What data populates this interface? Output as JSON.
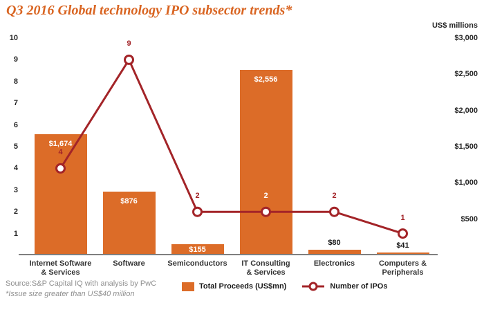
{
  "title": "Q3 2016 Global technology IPO subsector trends*",
  "source_line": "Source:S&P Capital IQ with analysis by PwC",
  "footnote_line": "*Issue size greater than US$40 million",
  "legend": {
    "bar_label": "Total Proceeds (US$mn)",
    "line_label": "Number of IPOs"
  },
  "colors": {
    "title": "#D96522",
    "bar": "#DC6C28",
    "line": "#A32428",
    "axis_line": "#7F7F7F",
    "tick_text": "#262626",
    "muted_text": "#8F8F8F",
    "bar_label_inside": "#FFFFFF",
    "bar_label_above": "#1A1A1A"
  },
  "chart_data": {
    "type": "bar+line (dual-axis combo)",
    "title": "Q3 2016 Global technology IPO subsector trends*",
    "categories": [
      "Internet Software\n& Services",
      "Software",
      "Semiconductors",
      "IT Consulting\n& Services",
      "Electronics",
      "Computers &\nPeripherals"
    ],
    "series": [
      {
        "name": "Total Proceeds (US$mn)",
        "type": "bar",
        "axis": "right",
        "values": [
          1674,
          876,
          155,
          2556,
          80,
          41
        ],
        "value_labels": [
          "$1,674",
          "$876",
          "$155",
          "$2,556",
          "$80",
          "$41"
        ],
        "value_label_positions": [
          "inside",
          "inside",
          "inside",
          "inside",
          "above",
          "above"
        ]
      },
      {
        "name": "Number of IPOs",
        "type": "line",
        "axis": "left",
        "values": [
          4,
          9,
          2,
          2,
          2,
          1
        ],
        "point_label_colors": [
          "#A32428",
          "#A32428",
          "#A32428",
          "#FFFFFF",
          "#A32428",
          "#A32428"
        ]
      }
    ],
    "left_axis": {
      "min": 0,
      "max": 10,
      "ticks": [
        10,
        9,
        8,
        7,
        6,
        5,
        4,
        3,
        2,
        1
      ]
    },
    "right_axis": {
      "min": 0,
      "max": 3000,
      "title": "US$ millions",
      "tick_labels": [
        "$3,000",
        "$2,500",
        "$2,000",
        "$1,500",
        "$1,000",
        "$500"
      ],
      "tick_values": [
        3000,
        2500,
        2000,
        1500,
        1000,
        500
      ]
    },
    "grid": false,
    "legend_position": "bottom"
  }
}
